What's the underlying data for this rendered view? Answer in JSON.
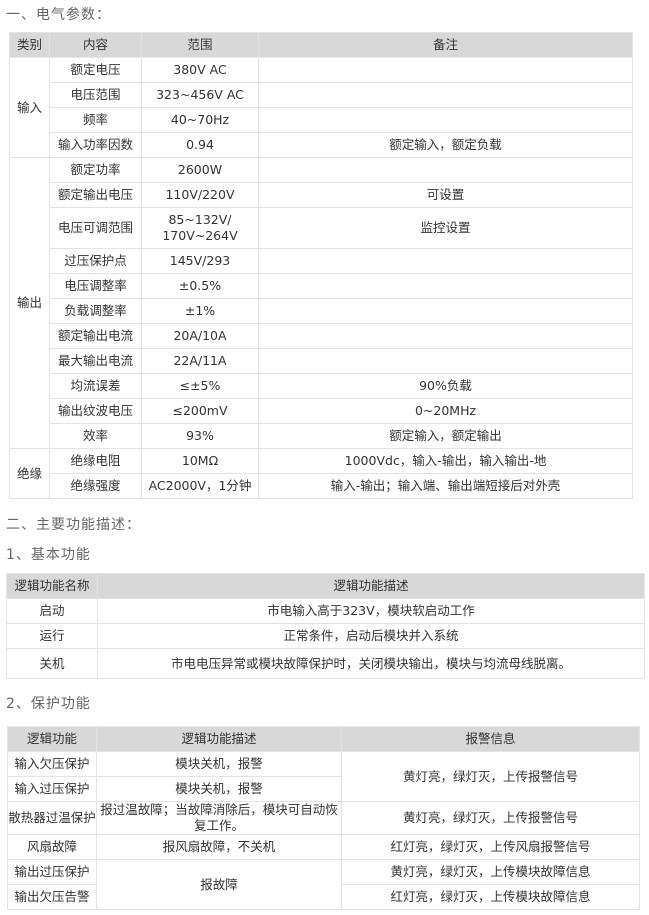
{
  "section1": {
    "heading": "一、电气参数：",
    "headers": [
      "类别",
      "内容",
      "范围",
      "备注"
    ],
    "groups": [
      {
        "category": "输入",
        "rows": [
          [
            "额定电压",
            "380V AC",
            ""
          ],
          [
            "电压范围",
            "323~456V AC",
            ""
          ],
          [
            "频率",
            "40~70Hz",
            ""
          ],
          [
            "输入功率因数",
            "0.94",
            "额定输入，额定负载"
          ]
        ]
      },
      {
        "category": "输出",
        "rows": [
          [
            "额定功率",
            "2600W",
            ""
          ],
          [
            "额定输出电压",
            "110V/220V",
            "可设置"
          ],
          [
            "电压可调范围",
            "85~132V/\n170V~264V",
            "监控设置"
          ],
          [
            "过压保护点",
            "145V/293",
            ""
          ],
          [
            "电压调整率",
            "±0.5%",
            ""
          ],
          [
            "负载调整率",
            "±1%",
            ""
          ],
          [
            "额定输出电流",
            "20A/10A",
            ""
          ],
          [
            "最大输出电流",
            "22A/11A",
            ""
          ],
          [
            "均流误差",
            "≤±5%",
            "90%负载"
          ],
          [
            "输出纹波电压",
            "≤200mV",
            "0~20MHz"
          ],
          [
            "效率",
            "93%",
            "额定输入，额定输出"
          ]
        ]
      },
      {
        "category": "绝缘",
        "rows": [
          [
            "绝缘电阻",
            "10MΩ",
            "1000Vdc，输入-输出，输入输出-地"
          ],
          [
            "绝缘强度",
            "AC2000V，1分钟",
            "输入-输出；输入端、输出端短接后对外壳"
          ]
        ]
      }
    ]
  },
  "section2": {
    "heading": "二、主要功能描述：",
    "sub1": {
      "heading": "1、基本功能",
      "headers": [
        "逻辑功能名称",
        "逻辑功能描述"
      ],
      "rows": [
        [
          "启动",
          "市电输入高于323V，模块软启动工作"
        ],
        [
          "运行",
          "正常条件，启动后模块并入系统"
        ],
        [
          "关机",
          "市电电压异常或模块故障保护时，关闭模块输出，模块与均流母线脱离。"
        ]
      ]
    },
    "sub2": {
      "heading": "2、保护功能",
      "headers": [
        "逻辑功能",
        "逻辑功能描述",
        "报警信息"
      ],
      "rows": [
        [
          "输入欠压保护",
          "模块关机，报警",
          "黄灯亮，绿灯灭，上传报警信号"
        ],
        [
          "输入过压保护",
          "模块关机，报警",
          ""
        ],
        [
          "散热器过温保护",
          "报过温故障；当故障消除后，模块可自动恢复工作。",
          "黄灯亮，绿灯灭，上传报警信号"
        ],
        [
          "风扇故障",
          "报风扇故障，不关机",
          "红灯亮，绿灯灭，上传风扇报警信号"
        ],
        [
          "输出过压保护",
          "报故障",
          "黄灯亮，绿灯灭，上传模块故障信息"
        ],
        [
          "输出欠压告警",
          "",
          "红灯亮，绿灯灭，上传模块故障信息"
        ]
      ]
    }
  }
}
